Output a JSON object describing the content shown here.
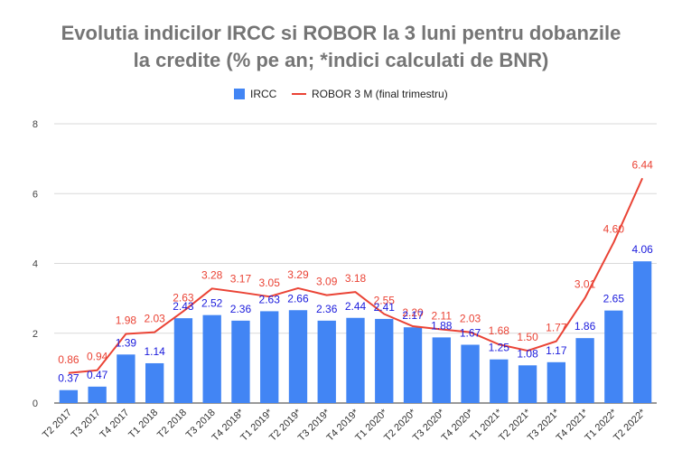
{
  "chart_data": {
    "type": "bar",
    "title_line1": "Evolutia indicilor IRCC si ROBOR la 3 luni pentru dobanzile",
    "title_line2": "la credite (% pe an; *indici calculati de BNR)",
    "categories": [
      "T2 2017",
      "T3 2017",
      "T4 2017",
      "T1 2018",
      "T2 2018",
      "T3 2018",
      "T4 2018*",
      "T1 2019*",
      "T2 2019*",
      "T3 2019*",
      "T4 2019*",
      "T1 2020*",
      "T2 2020*",
      "T3 2020*",
      "T4 2020*",
      "T1 2021*",
      "T2 2021*",
      "T3 2021*",
      "T4 2021*",
      "T1 2022*",
      "T2 2022*"
    ],
    "series": [
      {
        "name": "IRCC",
        "kind": "bar",
        "color": "#4285f4",
        "label_color": "#1a1adc",
        "values": [
          0.37,
          0.47,
          1.39,
          1.14,
          2.43,
          2.52,
          2.36,
          2.63,
          2.66,
          2.36,
          2.44,
          2.41,
          2.17,
          1.88,
          1.67,
          1.25,
          1.08,
          1.17,
          1.86,
          2.65,
          4.06
        ]
      },
      {
        "name": "ROBOR 3 M (final trimestru)",
        "kind": "line",
        "color": "#ea4335",
        "label_color": "#ea4335",
        "values": [
          0.86,
          0.94,
          1.98,
          2.03,
          2.63,
          3.28,
          3.17,
          3.05,
          3.29,
          3.09,
          3.18,
          2.55,
          2.2,
          2.11,
          2.03,
          1.68,
          1.5,
          1.77,
          3.01,
          4.6,
          6.44
        ]
      }
    ],
    "yticks": [
      0,
      2,
      4,
      6,
      8
    ],
    "ylim": [
      0,
      8
    ],
    "grid": true,
    "legend_position": "top"
  }
}
